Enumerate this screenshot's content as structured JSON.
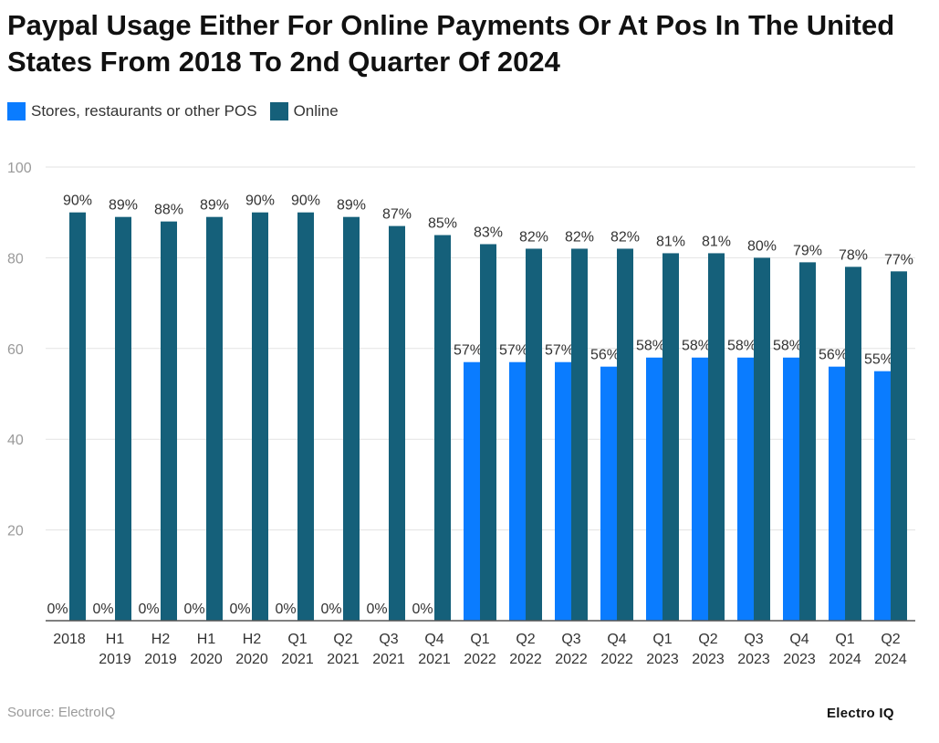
{
  "title": "Paypal Usage Either For Online Payments Or At Pos In The United States From 2018 To 2nd Quarter Of 2024",
  "legend": [
    {
      "label": "Stores, restaurants or other POS",
      "color": "#0a7cff"
    },
    {
      "label": "Online",
      "color": "#15607a"
    }
  ],
  "source": "Source: ElectroIQ",
  "brand": "Electro IQ",
  "chart_data": {
    "type": "bar",
    "categories": [
      [
        "2018"
      ],
      [
        "H1",
        "2019"
      ],
      [
        "H2",
        "2019"
      ],
      [
        "H1",
        "2020"
      ],
      [
        "H2",
        "2020"
      ],
      [
        "Q1",
        "2021"
      ],
      [
        "Q2",
        "2021"
      ],
      [
        "Q3",
        "2021"
      ],
      [
        "Q4",
        "2021"
      ],
      [
        "Q1",
        "2022"
      ],
      [
        "Q2",
        "2022"
      ],
      [
        "Q3",
        "2022"
      ],
      [
        "Q4",
        "2022"
      ],
      [
        "Q1",
        "2023"
      ],
      [
        "Q2",
        "2023"
      ],
      [
        "Q3",
        "2023"
      ],
      [
        "Q4",
        "2023"
      ],
      [
        "Q1",
        "2024"
      ],
      [
        "Q2",
        "2024"
      ]
    ],
    "series": [
      {
        "name": "Stores, restaurants or other POS",
        "color": "#0a7cff",
        "values": [
          0,
          0,
          0,
          0,
          0,
          0,
          0,
          0,
          0,
          57,
          57,
          57,
          56,
          58,
          58,
          58,
          58,
          56,
          55
        ]
      },
      {
        "name": "Online",
        "color": "#15607a",
        "values": [
          90,
          89,
          88,
          89,
          90,
          90,
          89,
          87,
          85,
          83,
          82,
          82,
          82,
          81,
          81,
          80,
          79,
          78,
          77
        ]
      }
    ],
    "ylim": [
      0,
      100
    ],
    "yticks": [
      20,
      40,
      60,
      80,
      100
    ],
    "value_suffix": "%",
    "grid": true,
    "legend_position": "top-left"
  }
}
